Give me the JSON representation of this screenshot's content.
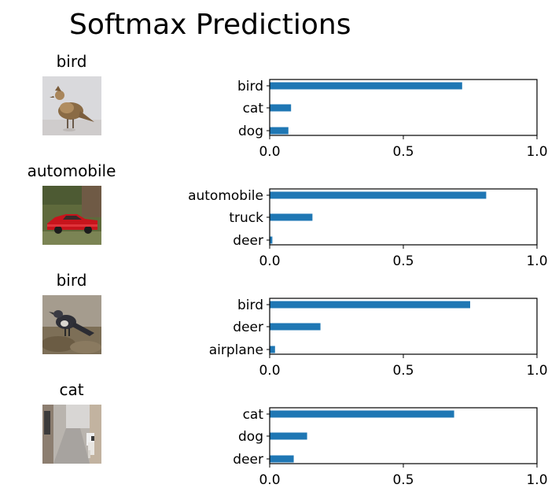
{
  "title": "Softmax Predictions",
  "colors": {
    "bar": "#1f77b4",
    "axis": "#000000"
  },
  "chart_data": [
    {
      "type": "bar",
      "orientation": "horizontal",
      "image_title": "bird",
      "image": "bird-photo",
      "categories": [
        "bird",
        "cat",
        "dog"
      ],
      "values": [
        0.72,
        0.08,
        0.07
      ],
      "xlim": [
        0.0,
        1.0
      ],
      "xticks": [
        "0.0",
        "0.5",
        "1.0"
      ],
      "grid": false
    },
    {
      "type": "bar",
      "orientation": "horizontal",
      "image_title": "automobile",
      "image": "red-car-photo",
      "categories": [
        "automobile",
        "truck",
        "deer"
      ],
      "values": [
        0.81,
        0.16,
        0.01
      ],
      "xlim": [
        0.0,
        1.0
      ],
      "xticks": [
        "0.0",
        "0.5",
        "1.0"
      ],
      "grid": false
    },
    {
      "type": "bar",
      "orientation": "horizontal",
      "image_title": "bird",
      "image": "dark-bird-photo",
      "categories": [
        "bird",
        "deer",
        "airplane"
      ],
      "values": [
        0.75,
        0.19,
        0.02
      ],
      "xlim": [
        0.0,
        1.0
      ],
      "xticks": [
        "0.0",
        "0.5",
        "1.0"
      ],
      "grid": false
    },
    {
      "type": "bar",
      "orientation": "horizontal",
      "image_title": "cat",
      "image": "cat-in-alley-photo",
      "categories": [
        "cat",
        "dog",
        "deer"
      ],
      "values": [
        0.69,
        0.14,
        0.09
      ],
      "xlim": [
        0.0,
        1.0
      ],
      "xticks": [
        "0.0",
        "0.5",
        "1.0"
      ],
      "grid": false
    }
  ]
}
